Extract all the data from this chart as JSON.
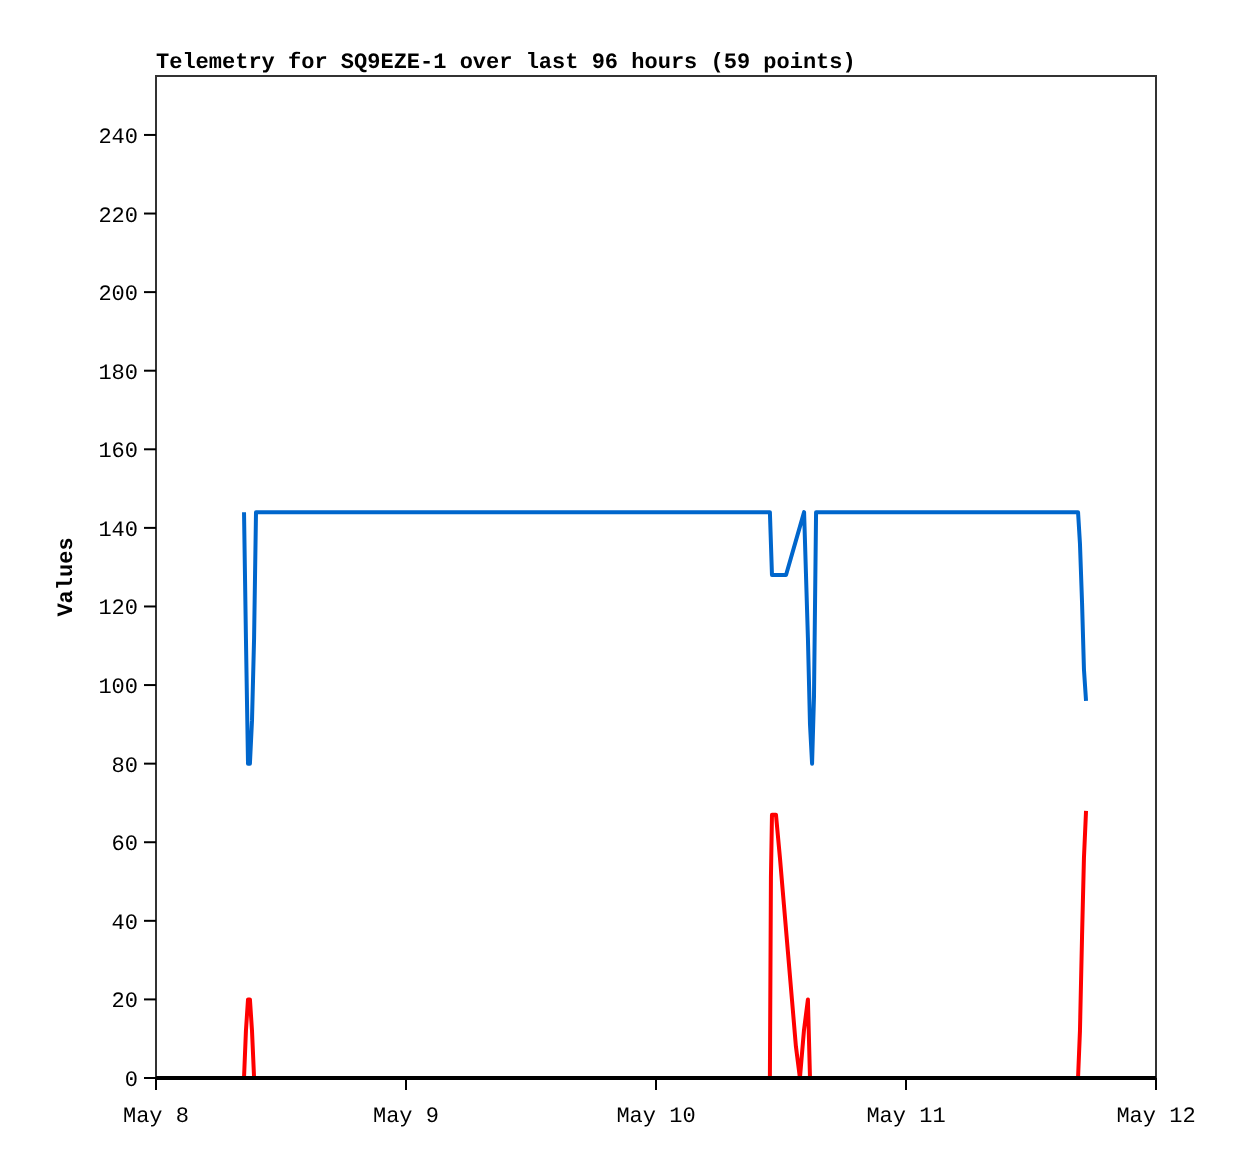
{
  "chart_data": {
    "type": "line",
    "title": "Telemetry for SQ9EZE-1 over last 96 hours (59 points)",
    "ylabel": "Values",
    "xlim": [
      "--05-08",
      "--05-12"
    ],
    "xticks": [
      {
        "value": "--05-08",
        "label": "May 8"
      },
      {
        "value": "--05-09",
        "label": "May 9"
      },
      {
        "value": "--05-10",
        "label": "May 10"
      },
      {
        "value": "--05-11",
        "label": "May 11"
      },
      {
        "value": "--05-12",
        "label": "May 12"
      }
    ],
    "ylim": [
      0,
      255
    ],
    "yticks": [
      0,
      20,
      40,
      60,
      80,
      100,
      120,
      140,
      160,
      180,
      200,
      220,
      240
    ],
    "series": [
      {
        "color": "#0066cc",
        "x": [
          "--05-08T08:27",
          "--05-08T08:38",
          "--05-08T08:50",
          "--05-08T09:01",
          "--05-08T09:13",
          "--05-08T09:25",
          "--05-08T09:36",
          "--05-10T10:56",
          "--05-10T11:08",
          "--05-10T12:29",
          "--05-10T14:13",
          "--05-10T14:35",
          "--05-10T14:47",
          "--05-10T14:59",
          "--05-10T15:10",
          "--05-10T15:22",
          "--05-11T16:31",
          "--05-11T16:42",
          "--05-11T16:54",
          "--05-11T17:05",
          "--05-11T17:17"
        ],
        "values": [
          144,
          112,
          80,
          80,
          91,
          112,
          144,
          144,
          128,
          128,
          144,
          112,
          90,
          80,
          97,
          144,
          144,
          136,
          121,
          104,
          96
        ]
      },
      {
        "color": "#ff0000",
        "x": [
          "--05-08T08:27",
          "--05-08T08:38",
          "--05-08T08:50",
          "--05-08T09:01",
          "--05-08T09:13",
          "--05-08T09:25",
          "--05-10T10:56",
          "--05-10T11:02",
          "--05-10T11:08",
          "--05-10T11:31",
          "--05-10T11:54",
          "--05-10T12:17",
          "--05-10T12:40",
          "--05-10T13:03",
          "--05-10T13:26",
          "--05-10T13:49",
          "--05-10T14:12",
          "--05-10T14:35",
          "--05-10T14:47",
          "--05-10T15:10",
          "--05-11T16:31",
          "--05-11T16:42",
          "--05-11T16:54",
          "--05-11T17:05",
          "--05-11T17:17"
        ],
        "values": [
          0,
          12,
          20,
          20,
          12,
          0,
          0,
          51,
          67,
          67,
          56,
          44,
          32,
          20,
          8,
          0,
          12,
          20,
          0,
          0,
          0,
          12,
          36,
          56,
          68
        ]
      }
    ]
  }
}
